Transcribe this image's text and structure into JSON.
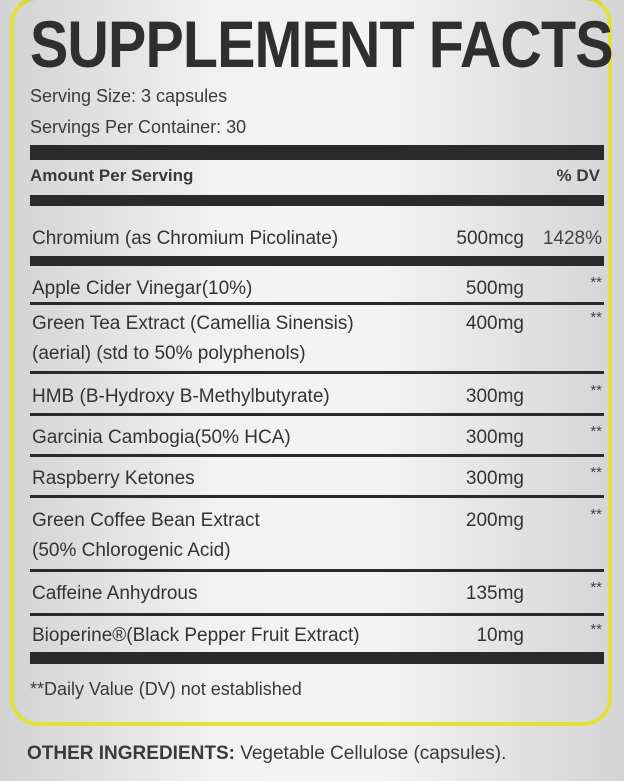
{
  "label": {
    "title": "SUPPLEMENT FACTS",
    "serving_size": "Serving Size: 3 capsules",
    "servings_per_container": "Servings Per Container: 30",
    "amount_header": "Amount Per Serving",
    "dv_header": "% DV",
    "rows": [
      {
        "name": [
          "Chromium (as Chromium Picolinate)"
        ],
        "amount": "500mcg",
        "dv": "1428%"
      },
      {
        "name": [
          "Apple Cider Vinegar(10%)"
        ],
        "amount": "500mg",
        "dv": "**"
      },
      {
        "name": [
          "Green Tea Extract (Camellia Sinensis)",
          "(aerial) (std to 50% polyphenols)"
        ],
        "amount": "400mg",
        "dv": "**"
      },
      {
        "name": [
          "HMB (B-Hydroxy B-Methylbutyrate)"
        ],
        "amount": "300mg",
        "dv": "**"
      },
      {
        "name": [
          "Garcinia Cambogia(50% HCA)"
        ],
        "amount": "300mg",
        "dv": "**"
      },
      {
        "name": [
          "Raspberry Ketones"
        ],
        "amount": "300mg",
        "dv": "**"
      },
      {
        "name": [
          "Green Coffee Bean Extract",
          "(50% Chlorogenic Acid)"
        ],
        "amount": "200mg",
        "dv": "**"
      },
      {
        "name": [
          "Caffeine Anhydrous"
        ],
        "amount": "135mg",
        "dv": "**"
      },
      {
        "name": [
          "Bioperine®(Black Pepper Fruit Extract)"
        ],
        "amount": "10mg",
        "dv": "**"
      }
    ],
    "footnote": "**Daily Value (DV) not established",
    "border_color": "#e3e03a"
  },
  "other_ingredients": {
    "label": "OTHER INGREDIENTS:",
    "value": " Vegetable Cellulose (capsules)."
  }
}
